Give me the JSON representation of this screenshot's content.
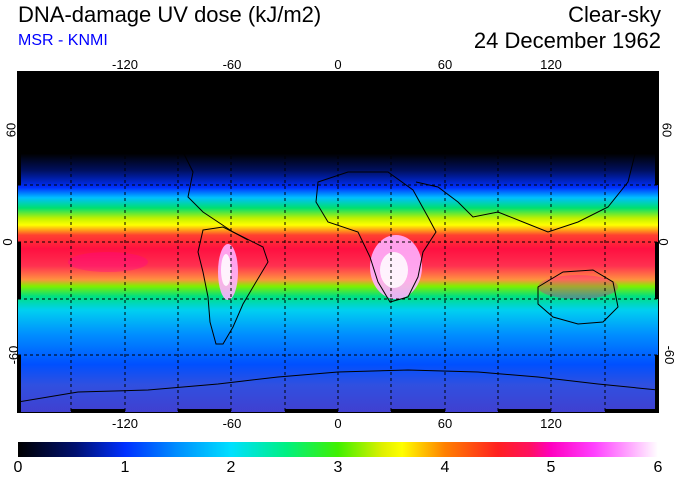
{
  "header": {
    "title": "DNA-damage UV dose (kJ/m2)",
    "source": "MSR - KNMI",
    "sky_condition": "Clear-sky",
    "date": "24 December 1962"
  },
  "axes": {
    "longitude_ticks": [
      "-120",
      "-60",
      "0",
      "60",
      "120"
    ],
    "latitude_ticks_left": [
      "60",
      "0",
      "-60"
    ],
    "latitude_ticks_right": [
      "60",
      "0",
      "-60"
    ]
  },
  "colorbar": {
    "labels": [
      "0",
      "1",
      "2",
      "3",
      "4",
      "5",
      "6"
    ],
    "min": 0,
    "max": 6
  },
  "colors": {
    "subtitle": "#0000ff"
  }
}
